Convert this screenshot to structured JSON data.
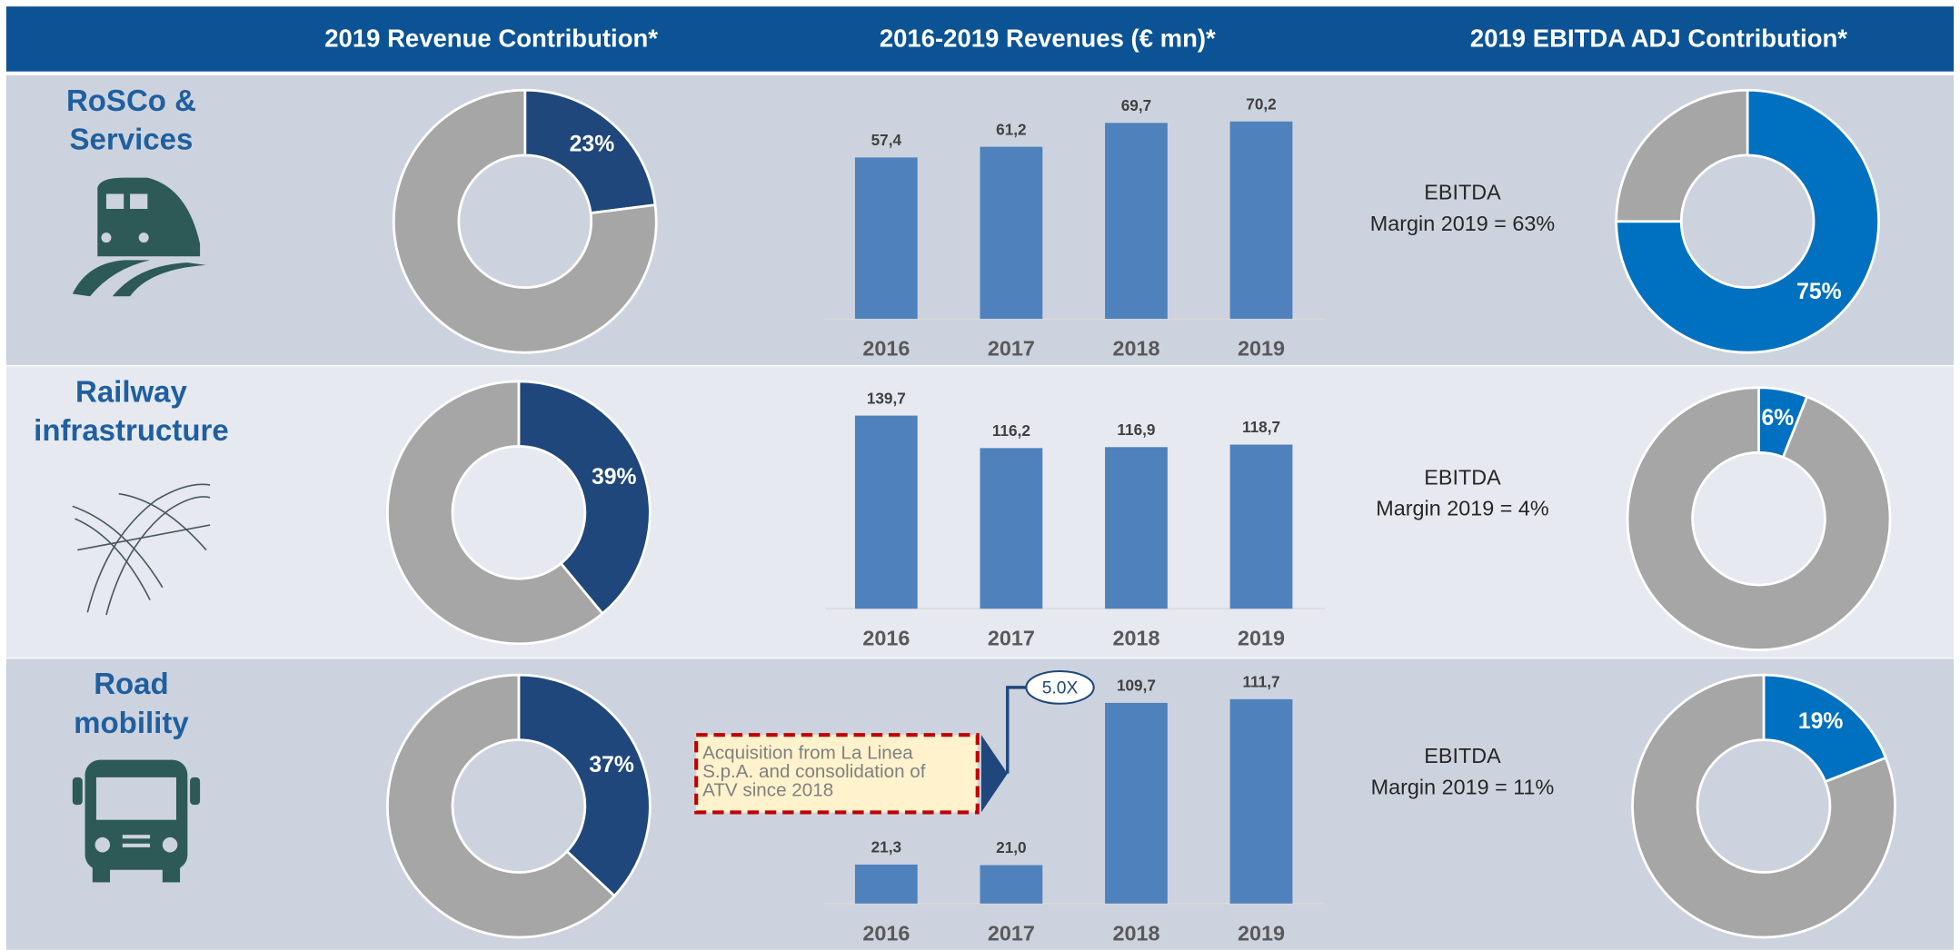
{
  "headers": [
    "2019 Revenue Contribution*",
    "2016-2019 Revenues (€ mn)*",
    "2019 EBITDA ADJ Contribution*"
  ],
  "segments": [
    {
      "label_lines": [
        "RoSCo &",
        "Services"
      ],
      "ebitda_note": [
        "EBITDA",
        "Margin 2019 = 63%"
      ]
    },
    {
      "label_lines": [
        "Railway",
        "infrastructure"
      ],
      "ebitda_note": [
        "EBITDA",
        "Margin 2019 = 4%"
      ]
    },
    {
      "label_lines": [
        "Road",
        "mobility"
      ],
      "ebitda_note": [
        "EBITDA",
        "Margin 2019 = 11%"
      ]
    }
  ],
  "annotation": {
    "lines": [
      "Acquisition from La Linea",
      "S.p.A. and consolidation of",
      "ATV since 2018"
    ],
    "callout": "5.0X"
  },
  "chart_data": [
    {
      "type": "pie",
      "donut": true,
      "values": [
        23,
        77
      ],
      "value_labels": [
        "23%",
        null
      ],
      "colors": [
        "#1f477b",
        "#a6a6a6"
      ]
    },
    {
      "type": "bar",
      "categories": [
        "2016",
        "2017",
        "2018",
        "2019"
      ],
      "values": [
        57.4,
        61.2,
        69.7,
        70.2
      ],
      "value_labels": [
        "57,4",
        "61,2",
        "69,7",
        "70,2"
      ],
      "color": "#4f81bd",
      "ylim": [
        0,
        80
      ]
    },
    {
      "type": "pie",
      "donut": true,
      "values": [
        75,
        25
      ],
      "value_labels": [
        "75%",
        null
      ],
      "colors": [
        "#0070c0",
        "#a6a6a6"
      ]
    },
    {
      "type": "pie",
      "donut": true,
      "values": [
        39,
        61
      ],
      "value_labels": [
        "39%",
        null
      ],
      "colors": [
        "#1f477b",
        "#a6a6a6"
      ]
    },
    {
      "type": "bar",
      "categories": [
        "2016",
        "2017",
        "2018",
        "2019"
      ],
      "values": [
        139.7,
        116.2,
        116.9,
        118.7
      ],
      "value_labels": [
        "139,7",
        "116,2",
        "116,9",
        "118,7"
      ],
      "color": "#4f81bd",
      "ylim": [
        0,
        160
      ]
    },
    {
      "type": "pie",
      "donut": true,
      "values": [
        6,
        94
      ],
      "value_labels": [
        "6%",
        null
      ],
      "colors": [
        "#0070c0",
        "#a6a6a6"
      ]
    },
    {
      "type": "pie",
      "donut": true,
      "values": [
        37,
        63
      ],
      "value_labels": [
        "37%",
        null
      ],
      "colors": [
        "#1f477b",
        "#a6a6a6"
      ]
    },
    {
      "type": "bar",
      "categories": [
        "2016",
        "2017",
        "2018",
        "2019"
      ],
      "values": [
        21.3,
        21.0,
        109.7,
        111.7
      ],
      "value_labels": [
        "21,3",
        "21,0",
        "109,7",
        "111,7"
      ],
      "color": "#4f81bd",
      "ylim": [
        0,
        125
      ]
    },
    {
      "type": "pie",
      "donut": true,
      "values": [
        19,
        81
      ],
      "value_labels": [
        "19%",
        null
      ],
      "colors": [
        "#0070c0",
        "#a6a6a6"
      ]
    }
  ]
}
